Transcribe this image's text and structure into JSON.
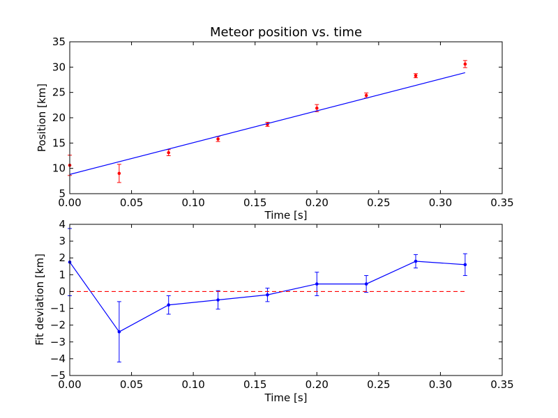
{
  "chart_data": [
    {
      "type": "scatter",
      "title": "Meteor position vs. time",
      "xlabel": "Time [s]",
      "ylabel": "Position [km]",
      "xlim": [
        0,
        0.35
      ],
      "ylim": [
        5,
        35
      ],
      "xticks": [
        "0.00",
        "0.05",
        "0.10",
        "0.15",
        "0.20",
        "0.25",
        "0.30",
        "0.35"
      ],
      "yticks": [
        "5",
        "10",
        "15",
        "20",
        "25",
        "30",
        "35"
      ],
      "grid": false,
      "series": [
        {
          "kind": "errorbar",
          "color": "#ff0000",
          "x": [
            0.0,
            0.04,
            0.08,
            0.12,
            0.16,
            0.2,
            0.24,
            0.28,
            0.32
          ],
          "y": [
            10.6,
            9.0,
            13.1,
            15.8,
            18.7,
            21.9,
            24.4,
            28.3,
            30.6
          ],
          "yerr": [
            2.0,
            1.8,
            0.6,
            0.5,
            0.4,
            0.7,
            0.5,
            0.4,
            0.7
          ]
        },
        {
          "kind": "line",
          "color": "#0000ff",
          "x": [
            0.0,
            0.32
          ],
          "y": [
            8.8,
            28.9
          ]
        }
      ]
    },
    {
      "type": "line",
      "title": "",
      "xlabel": "Time [s]",
      "ylabel": "Fit deviation [km]",
      "xlim": [
        0,
        0.35
      ],
      "ylim": [
        -5,
        4
      ],
      "xticks": [
        "0.00",
        "0.05",
        "0.10",
        "0.15",
        "0.20",
        "0.25",
        "0.30",
        "0.35"
      ],
      "yticks": [
        "−5",
        "−4",
        "−3",
        "−2",
        "−1",
        "0",
        "1",
        "2",
        "3",
        "4"
      ],
      "grid": false,
      "series": [
        {
          "kind": "errorbar-line",
          "color": "#0000ff",
          "x": [
            0.0,
            0.04,
            0.08,
            0.12,
            0.16,
            0.2,
            0.24,
            0.28,
            0.32
          ],
          "y": [
            1.75,
            -2.4,
            -0.8,
            -0.5,
            -0.2,
            0.45,
            0.45,
            1.8,
            1.6
          ],
          "yerr": [
            2.0,
            1.8,
            0.55,
            0.55,
            0.4,
            0.7,
            0.5,
            0.4,
            0.65
          ]
        },
        {
          "kind": "dashed-line",
          "color": "#ff0000",
          "x": [
            0.0,
            0.32
          ],
          "y": [
            0,
            0
          ]
        }
      ]
    }
  ]
}
